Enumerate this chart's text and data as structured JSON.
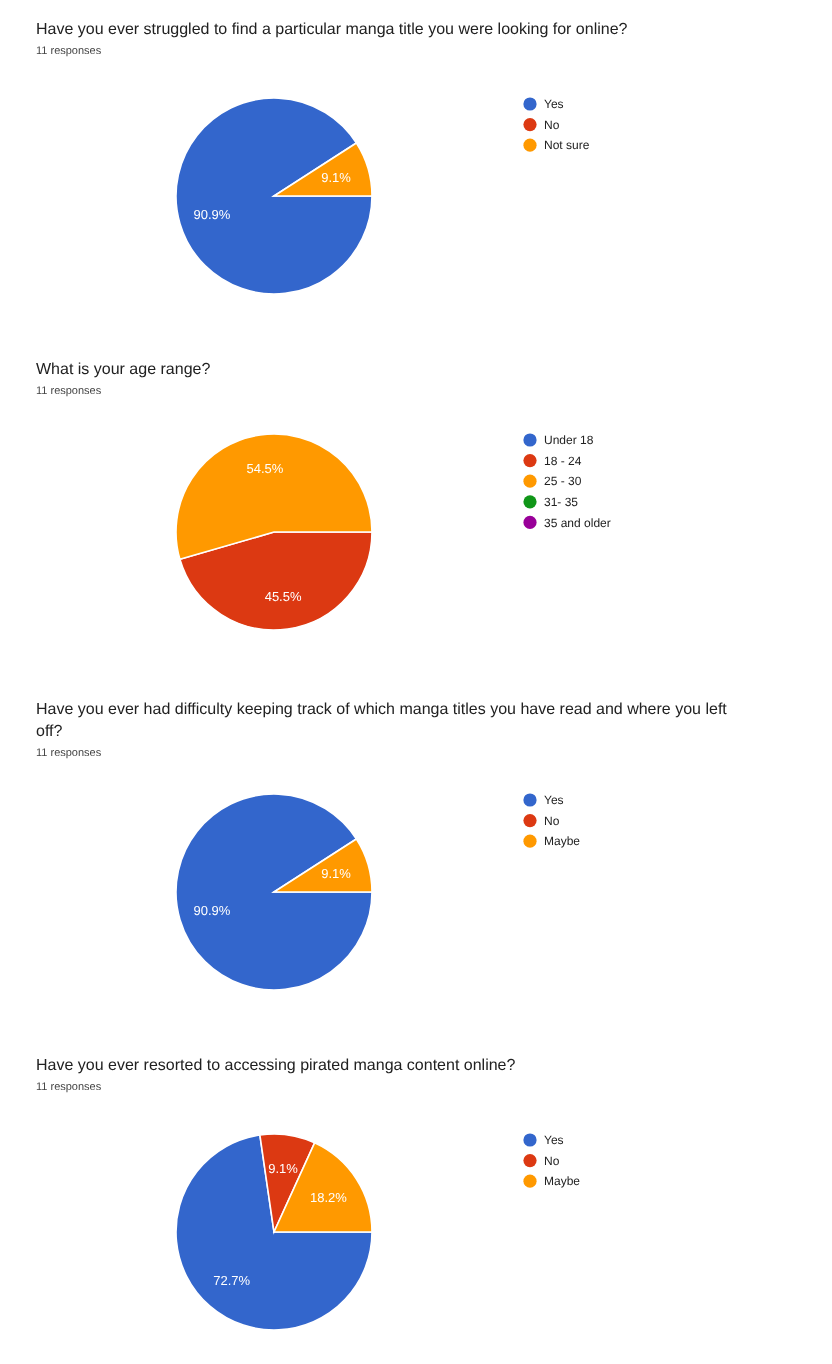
{
  "chart_data": [
    {
      "type": "pie",
      "title": "Have you ever struggled to find a particular manga title you were looking for online?",
      "subtitle": "11 responses",
      "categories": [
        "Yes",
        "No",
        "Not sure"
      ],
      "values": [
        90.9,
        0,
        9.1
      ],
      "colors": [
        "#3366cc",
        "#dc3912",
        "#ff9900"
      ],
      "value_labels": [
        "90.9%",
        null,
        "9.1%"
      ],
      "legend": "right"
    },
    {
      "type": "pie",
      "title": "What is your age range?",
      "subtitle": "11 responses",
      "categories": [
        "Under 18",
        "18 - 24",
        "25 - 30",
        "31- 35",
        "35 and older"
      ],
      "values": [
        0,
        45.5,
        54.5,
        0,
        0
      ],
      "colors": [
        "#3366cc",
        "#dc3912",
        "#ff9900",
        "#109618",
        "#990099"
      ],
      "value_labels": [
        null,
        "45.5%",
        "54.5%",
        null,
        null
      ],
      "legend": "right"
    },
    {
      "type": "pie",
      "title": "Have you ever had difficulty keeping track of which manga titles you have read and where you left off?",
      "subtitle": "11 responses",
      "categories": [
        "Yes",
        "No",
        "Maybe"
      ],
      "values": [
        90.9,
        0,
        9.1
      ],
      "colors": [
        "#3366cc",
        "#dc3912",
        "#ff9900"
      ],
      "value_labels": [
        "90.9%",
        null,
        "9.1%"
      ],
      "legend": "right"
    },
    {
      "type": "pie",
      "title": "Have you ever resorted to accessing pirated manga content online?",
      "subtitle": "11 responses",
      "categories": [
        "Yes",
        "No",
        "Maybe"
      ],
      "values": [
        72.7,
        9.1,
        18.2
      ],
      "colors": [
        "#3366cc",
        "#dc3912",
        "#ff9900"
      ],
      "value_labels": [
        "72.7%",
        "9.1%",
        "18.2%"
      ],
      "legend": "right"
    }
  ]
}
